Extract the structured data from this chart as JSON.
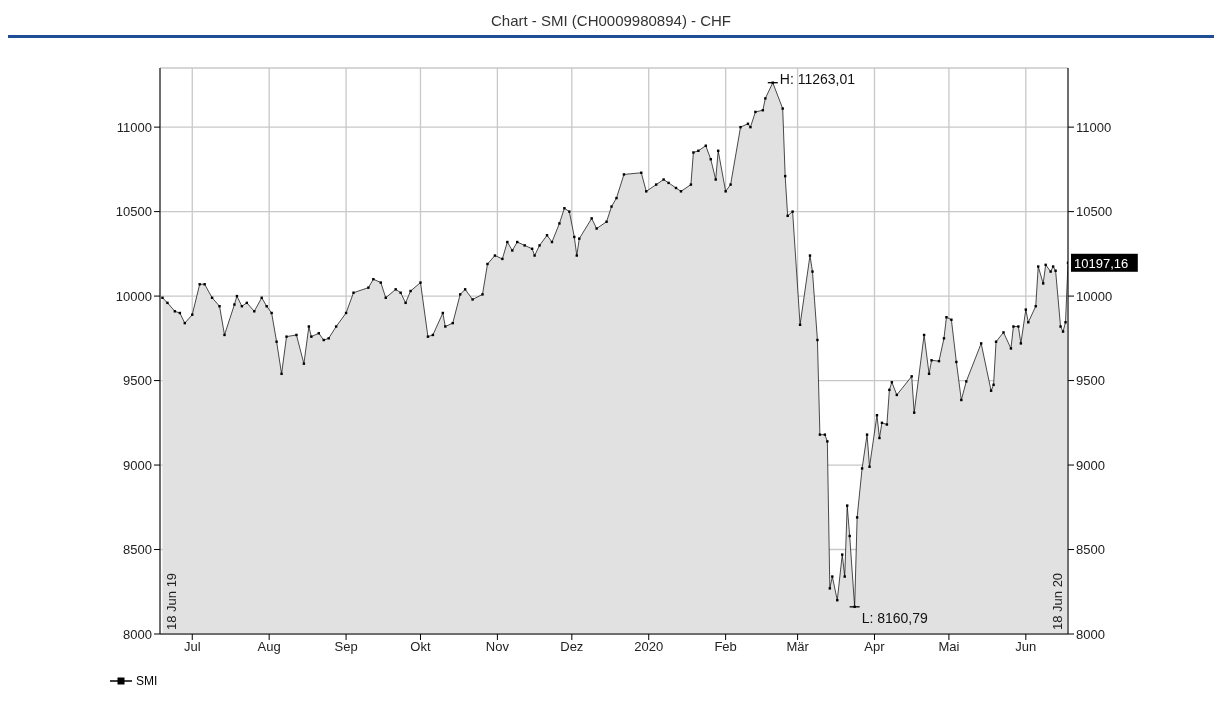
{
  "chart_data": {
    "type": "area",
    "title": "Chart - SMI (CH0009980894) - CHF",
    "x": [
      "2019-06-19",
      "2019-06-21",
      "2019-06-24",
      "2019-06-26",
      "2019-06-28",
      "2019-07-01",
      "2019-07-04",
      "2019-07-06",
      "2019-07-09",
      "2019-07-12",
      "2019-07-14",
      "2019-07-18",
      "2019-07-19",
      "2019-07-21",
      "2019-07-23",
      "2019-07-26",
      "2019-07-29",
      "2019-07-31",
      "2019-08-02",
      "2019-08-04",
      "2019-08-06",
      "2019-08-08",
      "2019-08-12",
      "2019-08-15",
      "2019-08-17",
      "2019-08-18",
      "2019-08-21",
      "2019-08-23",
      "2019-08-25",
      "2019-08-28",
      "2019-09-01",
      "2019-09-04",
      "2019-09-10",
      "2019-09-12",
      "2019-09-15",
      "2019-09-17",
      "2019-09-21",
      "2019-09-23",
      "2019-09-25",
      "2019-09-27",
      "2019-10-01",
      "2019-10-04",
      "2019-10-06",
      "2019-10-10",
      "2019-10-11",
      "2019-10-14",
      "2019-10-17",
      "2019-10-19",
      "2019-10-22",
      "2019-10-26",
      "2019-10-28",
      "2019-10-31",
      "2019-11-03",
      "2019-11-05",
      "2019-11-07",
      "2019-11-09",
      "2019-11-12",
      "2019-11-15",
      "2019-11-16",
      "2019-11-18",
      "2019-11-21",
      "2019-11-23",
      "2019-11-26",
      "2019-11-28",
      "2019-11-30",
      "2019-12-02",
      "2019-12-03",
      "2019-12-04",
      "2019-12-09",
      "2019-12-11",
      "2019-12-15",
      "2019-12-17",
      "2019-12-19",
      "2019-12-22",
      "2019-12-29",
      "2019-12-31",
      "2020-01-04",
      "2020-01-07",
      "2020-01-09",
      "2020-01-12",
      "2020-01-14",
      "2020-01-18",
      "2020-01-19",
      "2020-01-21",
      "2020-01-24",
      "2020-01-26",
      "2020-01-28",
      "2020-01-29",
      "2020-02-01",
      "2020-02-03",
      "2020-02-07",
      "2020-02-10",
      "2020-02-11",
      "2020-02-13",
      "2020-02-16",
      "2020-02-17",
      "2020-02-20",
      "2020-02-24",
      "2020-02-25",
      "2020-02-26",
      "2020-02-28",
      "2020-03-02",
      "2020-03-06",
      "2020-03-07",
      "2020-03-09",
      "2020-03-10",
      "2020-03-12",
      "2020-03-13",
      "2020-03-14",
      "2020-03-15",
      "2020-03-17",
      "2020-03-19",
      "2020-03-20",
      "2020-03-21",
      "2020-03-22",
      "2020-03-24",
      "2020-03-25",
      "2020-03-27",
      "2020-03-29",
      "2020-03-30",
      "2020-04-02",
      "2020-04-03",
      "2020-04-04",
      "2020-04-06",
      "2020-04-07",
      "2020-04-08",
      "2020-04-10",
      "2020-04-16",
      "2020-04-17",
      "2020-04-21",
      "2020-04-23",
      "2020-04-24",
      "2020-04-27",
      "2020-04-29",
      "2020-04-30",
      "2020-05-02",
      "2020-05-04",
      "2020-05-06",
      "2020-05-08",
      "2020-05-14",
      "2020-05-18",
      "2020-05-19",
      "2020-05-20",
      "2020-05-23",
      "2020-05-26",
      "2020-05-27",
      "2020-05-29",
      "2020-05-30",
      "2020-06-01",
      "2020-06-02",
      "2020-06-05",
      "2020-06-06",
      "2020-06-08",
      "2020-06-09",
      "2020-06-11",
      "2020-06-12",
      "2020-06-13",
      "2020-06-15",
      "2020-06-16",
      "2020-06-17",
      "2020-06-18"
    ],
    "series": [
      {
        "name": "SMI",
        "color": "#000000",
        "values": [
          9990,
          9960,
          9910,
          9900,
          9840,
          9890,
          10070,
          10070,
          9990,
          9940,
          9770,
          9950,
          10000,
          9940,
          9960,
          9910,
          9990,
          9940,
          9900,
          9730,
          9540,
          9760,
          9770,
          9600,
          9820,
          9760,
          9780,
          9740,
          9750,
          9820,
          9900,
          10020,
          10050,
          10100,
          10080,
          9990,
          10040,
          10020,
          9960,
          10030,
          10080,
          9760,
          9770,
          9900,
          9820,
          9840,
          10010,
          10040,
          9980,
          10010,
          10190,
          10240,
          10220,
          10320,
          10270,
          10320,
          10300,
          10280,
          10240,
          10300,
          10360,
          10320,
          10430,
          10520,
          10500,
          10350,
          10240,
          10340,
          10460,
          10400,
          10440,
          10530,
          10580,
          10720,
          10730,
          10620,
          10660,
          10690,
          10670,
          10640,
          10620,
          10660,
          10850,
          10860,
          10890,
          10810,
          10690,
          10860,
          10620,
          10660,
          11000,
          11020,
          11000,
          11090,
          11100,
          11170,
          11263.01,
          11110,
          10710,
          10475,
          10500,
          9830,
          10240,
          10145,
          9740,
          9180,
          9180,
          9140,
          8270,
          8340,
          8200,
          8470,
          8340,
          8760,
          8580,
          8160.79,
          8690,
          8980,
          9180,
          8990,
          9295,
          9160,
          9250,
          9240,
          9445,
          9490,
          9415,
          9525,
          9310,
          9770,
          9540,
          9620,
          9615,
          9750,
          9875,
          9860,
          9610,
          9385,
          9495,
          9720,
          9440,
          9475,
          9730,
          9785,
          9690,
          9820,
          9820,
          9720,
          9920,
          9845,
          9940,
          10175,
          10075,
          10185,
          10145,
          10175,
          10150,
          9820,
          9790,
          9845,
          10197.16
        ]
      }
    ],
    "xlim": [
      "2019-06-18",
      "2020-06-18"
    ],
    "xticks": [
      {
        "value": "2019-07-01",
        "label": "Jul"
      },
      {
        "value": "2019-08-01",
        "label": "Aug"
      },
      {
        "value": "2019-09-01",
        "label": "Sep"
      },
      {
        "value": "2019-10-01",
        "label": "Okt"
      },
      {
        "value": "2019-11-01",
        "label": "Nov"
      },
      {
        "value": "2019-12-01",
        "label": "Dez"
      },
      {
        "value": "2020-01-01",
        "label": "2020"
      },
      {
        "value": "2020-02-01",
        "label": "Feb"
      },
      {
        "value": "2020-03-01",
        "label": "Mär"
      },
      {
        "value": "2020-04-01",
        "label": "Apr"
      },
      {
        "value": "2020-05-01",
        "label": "Mai"
      },
      {
        "value": "2020-06-01",
        "label": "Jun"
      }
    ],
    "ylim": [
      8000,
      11350
    ],
    "yticks": [
      8000,
      8500,
      9000,
      9500,
      10000,
      10500,
      11000
    ],
    "y2lim": [
      8000,
      11350
    ],
    "y2ticks": [
      8000,
      8500,
      9000,
      9500,
      10000,
      10500,
      11000
    ],
    "grid": true,
    "legend": "bottom left",
    "marker": "square",
    "annotations": [
      {
        "text": "H: 11263,01",
        "x": "2020-02-20",
        "y": 11263.01
      },
      {
        "text": "L: 8160,79",
        "x": "2020-03-24",
        "y": 8160.79
      },
      {
        "text": "10197,16",
        "x": "2020-06-18",
        "y": 10197.16
      },
      "18 Jun 19",
      "18 Jun 20"
    ]
  }
}
